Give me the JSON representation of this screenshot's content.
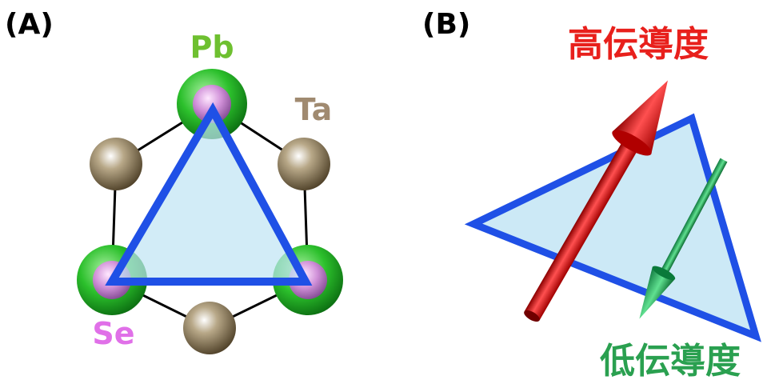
{
  "panel_a": {
    "label": "(A)",
    "pb": "Pb",
    "ta": "Ta",
    "se": "Se"
  },
  "panel_b": {
    "label": "(B)",
    "high": "高伝導度",
    "low": "低伝導度"
  }
}
